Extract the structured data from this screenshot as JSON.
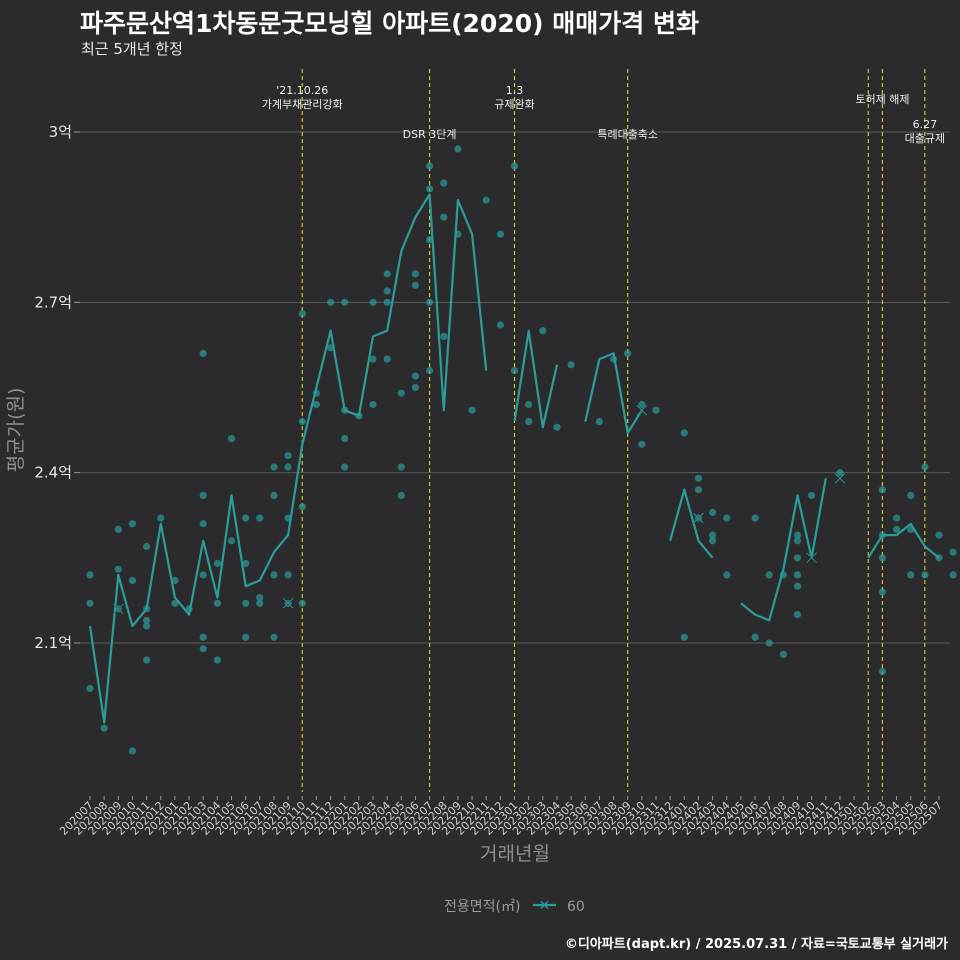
{
  "header": {
    "title": "파주문산역1차동문굿모닝힐 아파트(2020) 매매가격 변화",
    "subtitle": "최근 5개년 한정"
  },
  "footer": {
    "credit": "©디아파트(dapt.kr) / 2025.07.31 / 자료=국토교통부 실거래가"
  },
  "colors": {
    "background": "#2b2a2c",
    "series": "#2a9d98",
    "grid": "#5a5a5a",
    "event_line": "#d8d81a"
  },
  "chart_data": {
    "type": "line",
    "title": "파주문산역1차동문굿모닝힐 아파트(2020) 매매가격 변화",
    "xlabel": "거래년월",
    "ylabel": "평균가(원)",
    "ylim": [
      1.82,
      3.13
    ],
    "y_ticks": [
      {
        "value": 2.1,
        "label": "2.1억"
      },
      {
        "value": 2.4,
        "label": "2.4억"
      },
      {
        "value": 2.7,
        "label": "2.7억"
      },
      {
        "value": 3.0,
        "label": "3억"
      }
    ],
    "x_labels": [
      "202007",
      "202008",
      "202009",
      "202010",
      "202011",
      "202012",
      "202101",
      "202102",
      "202103",
      "202104",
      "202105",
      "202106",
      "202107",
      "202108",
      "202109",
      "202110",
      "202111",
      "202112",
      "202201",
      "202202",
      "202203",
      "202204",
      "202205",
      "202206",
      "202207",
      "202208",
      "202209",
      "202210",
      "202211",
      "202212",
      "202301",
      "202302",
      "202303",
      "202304",
      "202305",
      "202306",
      "202307",
      "202308",
      "202309",
      "202310",
      "202311",
      "202312",
      "202401",
      "202402",
      "202403",
      "202404",
      "202405",
      "202406",
      "202407",
      "202408",
      "202409",
      "202410",
      "202411",
      "202412",
      "202501",
      "202502",
      "202503",
      "202504",
      "202505",
      "202506",
      "202507"
    ],
    "legend": {
      "title": "전용면적(㎡)",
      "entries": [
        "60"
      ]
    },
    "series": [
      {
        "name": "60",
        "line_segments": [
          [
            [
              0,
              2.13
            ],
            [
              1,
              1.96
            ],
            [
              2,
              2.22
            ],
            [
              3,
              2.13
            ],
            [
              4,
              2.16
            ],
            [
              5,
              2.31
            ],
            [
              6,
              2.18
            ],
            [
              7,
              2.15
            ],
            [
              8,
              2.28
            ],
            [
              9,
              2.18
            ],
            [
              10,
              2.36
            ],
            [
              11,
              2.2
            ],
            [
              12,
              2.21
            ],
            [
              13,
              2.26
            ],
            [
              14,
              2.29
            ],
            [
              15,
              2.45
            ],
            [
              16,
              2.55
            ],
            [
              17,
              2.65
            ],
            [
              18,
              2.51
            ],
            [
              19,
              2.5
            ],
            [
              20,
              2.64
            ],
            [
              21,
              2.65
            ],
            [
              22,
              2.79
            ],
            [
              23,
              2.85
            ],
            [
              24,
              2.89
            ],
            [
              25,
              2.51
            ],
            [
              26,
              2.88
            ],
            [
              27,
              2.82
            ],
            [
              28,
              2.58
            ]
          ],
          [
            [
              30,
              2.49
            ],
            [
              31,
              2.65
            ],
            [
              32,
              2.48
            ],
            [
              33,
              2.59
            ]
          ],
          [
            [
              35,
              2.49
            ],
            [
              36,
              2.6
            ],
            [
              37,
              2.61
            ],
            [
              38,
              2.47
            ],
            [
              39,
              2.51
            ]
          ],
          [
            [
              41,
              2.28
            ],
            [
              42,
              2.37
            ],
            [
              43,
              2.28
            ],
            [
              44,
              2.25
            ]
          ],
          [
            [
              46,
              2.17
            ],
            [
              47,
              2.15
            ],
            [
              48,
              2.14
            ],
            [
              49,
              2.23
            ],
            [
              50,
              2.36
            ],
            [
              51,
              2.25
            ],
            [
              52,
              2.39
            ]
          ],
          [
            [
              55,
              2.25
            ],
            [
              56,
              2.29
            ],
            [
              57,
              2.29
            ],
            [
              58,
              2.31
            ],
            [
              59,
              2.27
            ],
            [
              60,
              2.25
            ]
          ]
        ],
        "points": [
          [
            0,
            2.22
          ],
          [
            0,
            2.17
          ],
          [
            0,
            2.02
          ],
          [
            1,
            1.95
          ],
          [
            2,
            2.3
          ],
          [
            2,
            2.23
          ],
          [
            2,
            2.16
          ],
          [
            3,
            2.31
          ],
          [
            3,
            2.21
          ],
          [
            3,
            1.91
          ],
          [
            4,
            2.27
          ],
          [
            4,
            2.16
          ],
          [
            4,
            2.14
          ],
          [
            4,
            2.13
          ],
          [
            4,
            2.07
          ],
          [
            5,
            2.32
          ],
          [
            6,
            2.21
          ],
          [
            6,
            2.17
          ],
          [
            7,
            2.16
          ],
          [
            8,
            2.61
          ],
          [
            8,
            2.36
          ],
          [
            8,
            2.31
          ],
          [
            8,
            2.22
          ],
          [
            8,
            2.11
          ],
          [
            8,
            2.09
          ],
          [
            9,
            2.24
          ],
          [
            9,
            2.17
          ],
          [
            9,
            2.07
          ],
          [
            10,
            2.46
          ],
          [
            10,
            2.28
          ],
          [
            11,
            2.32
          ],
          [
            11,
            2.24
          ],
          [
            11,
            2.17
          ],
          [
            11,
            2.11
          ],
          [
            12,
            2.32
          ],
          [
            12,
            2.18
          ],
          [
            12,
            2.17
          ],
          [
            13,
            2.41
          ],
          [
            13,
            2.36
          ],
          [
            13,
            2.22
          ],
          [
            13,
            2.11
          ],
          [
            14,
            2.43
          ],
          [
            14,
            2.41
          ],
          [
            14,
            2.32
          ],
          [
            14,
            2.22
          ],
          [
            14,
            2.17
          ],
          [
            15,
            2.68
          ],
          [
            15,
            2.49
          ],
          [
            15,
            2.34
          ],
          [
            15,
            2.17
          ],
          [
            16,
            2.54
          ],
          [
            16,
            2.52
          ],
          [
            17,
            2.7
          ],
          [
            17,
            2.62
          ],
          [
            18,
            2.7
          ],
          [
            18,
            2.51
          ],
          [
            18,
            2.46
          ],
          [
            18,
            2.41
          ],
          [
            19,
            2.5
          ],
          [
            20,
            2.7
          ],
          [
            20,
            2.6
          ],
          [
            20,
            2.52
          ],
          [
            21,
            2.75
          ],
          [
            21,
            2.72
          ],
          [
            21,
            2.7
          ],
          [
            21,
            2.6
          ],
          [
            22,
            2.54
          ],
          [
            22,
            2.41
          ],
          [
            22,
            2.36
          ],
          [
            23,
            2.73
          ],
          [
            23,
            2.75
          ],
          [
            23,
            2.57
          ],
          [
            23,
            2.55
          ],
          [
            24,
            2.94
          ],
          [
            24,
            2.9
          ],
          [
            24,
            2.81
          ],
          [
            24,
            2.7
          ],
          [
            24,
            2.58
          ],
          [
            25,
            2.91
          ],
          [
            25,
            2.85
          ],
          [
            25,
            2.64
          ],
          [
            26,
            2.97
          ],
          [
            26,
            2.82
          ],
          [
            27,
            2.51
          ],
          [
            28,
            2.88
          ],
          [
            29,
            2.82
          ],
          [
            29,
            2.66
          ],
          [
            30,
            2.94
          ],
          [
            30,
            2.58
          ],
          [
            31,
            2.49
          ],
          [
            31,
            2.52
          ],
          [
            32,
            2.65
          ],
          [
            33,
            2.48
          ],
          [
            34,
            2.59
          ],
          [
            36,
            2.49
          ],
          [
            37,
            2.6
          ],
          [
            38,
            2.61
          ],
          [
            39,
            2.52
          ],
          [
            39,
            2.45
          ],
          [
            40,
            2.51
          ],
          [
            42,
            2.47
          ],
          [
            42,
            2.11
          ],
          [
            43,
            2.39
          ],
          [
            43,
            2.37
          ],
          [
            43,
            2.32
          ],
          [
            44,
            2.33
          ],
          [
            44,
            2.29
          ],
          [
            44,
            2.28
          ],
          [
            45,
            2.32
          ],
          [
            45,
            2.22
          ],
          [
            47,
            2.32
          ],
          [
            47,
            2.11
          ],
          [
            48,
            2.22
          ],
          [
            48,
            2.1
          ],
          [
            49,
            2.22
          ],
          [
            49,
            2.08
          ],
          [
            50,
            2.29
          ],
          [
            50,
            2.28
          ],
          [
            50,
            2.25
          ],
          [
            50,
            2.22
          ],
          [
            50,
            2.2
          ],
          [
            50,
            2.15
          ],
          [
            51,
            2.36
          ],
          [
            53,
            2.4
          ],
          [
            56,
            2.37
          ],
          [
            56,
            2.29
          ],
          [
            56,
            2.25
          ],
          [
            56,
            2.19
          ],
          [
            56,
            2.05
          ],
          [
            57,
            2.32
          ],
          [
            57,
            2.3
          ],
          [
            58,
            2.36
          ],
          [
            58,
            2.3
          ],
          [
            58,
            2.22
          ],
          [
            59,
            2.41
          ],
          [
            59,
            2.22
          ],
          [
            60,
            2.29
          ],
          [
            60,
            2.25
          ],
          [
            61,
            2.26
          ],
          [
            61,
            2.22
          ]
        ],
        "x_markers": [
          [
            2,
            2.16
          ],
          [
            14,
            2.17
          ],
          [
            39,
            2.51
          ],
          [
            43,
            2.32
          ],
          [
            51,
            2.25
          ],
          [
            53,
            2.39
          ]
        ]
      }
    ],
    "events": [
      {
        "x": 15,
        "lines": [
          "'21.10.26",
          "가계부채관리강화"
        ],
        "level": 1
      },
      {
        "x": 24,
        "lines": [
          "DSR 3단계"
        ],
        "level": 3
      },
      {
        "x": 30,
        "lines": [
          "1.3",
          "규제완화"
        ],
        "level": 1
      },
      {
        "x": 38,
        "lines": [
          "특례대출축소"
        ],
        "level": 3
      },
      {
        "x": 55,
        "lines": [],
        "level": 0
      },
      {
        "x": 56,
        "lines": [
          "토허제 해제"
        ],
        "level": 2
      },
      {
        "x": 59,
        "lines": [
          "6.27",
          "대출규제"
        ],
        "level": 4
      }
    ]
  }
}
